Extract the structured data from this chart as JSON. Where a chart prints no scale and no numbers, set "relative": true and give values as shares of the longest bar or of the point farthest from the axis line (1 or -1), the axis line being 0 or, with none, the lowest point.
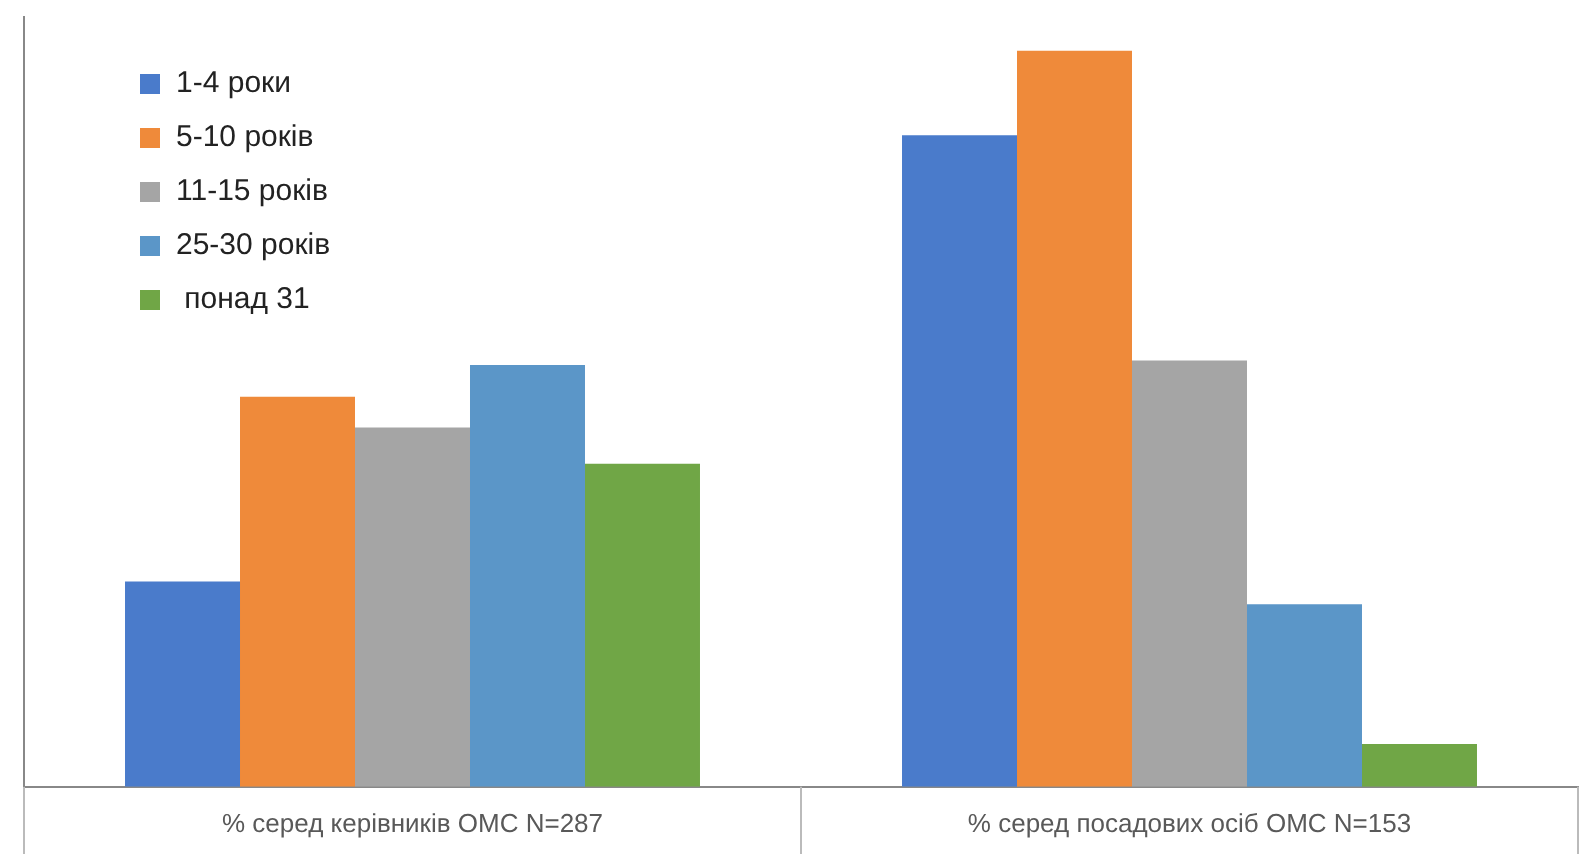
{
  "chart_data": {
    "type": "bar",
    "relative": true,
    "categories": [
      "% серед керівників ОМС N=287",
      "% серед посадових осіб ОМС N=153"
    ],
    "series": [
      {
        "name": "1-4 роки",
        "color": "#4a7bcb",
        "values": [
          0.279,
          0.885
        ]
      },
      {
        "name": "5-10 років",
        "color": "#ef8a3a",
        "values": [
          0.53,
          1
        ]
      },
      {
        "name": "11-15 років",
        "color": "#a5a5a5",
        "values": [
          0.488,
          0.579
        ]
      },
      {
        "name": "25-30 років",
        "color": "#5b96c8",
        "values": [
          0.573,
          0.248
        ]
      },
      {
        "name": " понад 31",
        "color": "#70a646",
        "values": [
          0.439,
          0.058
        ]
      }
    ],
    "legend": "top left"
  }
}
